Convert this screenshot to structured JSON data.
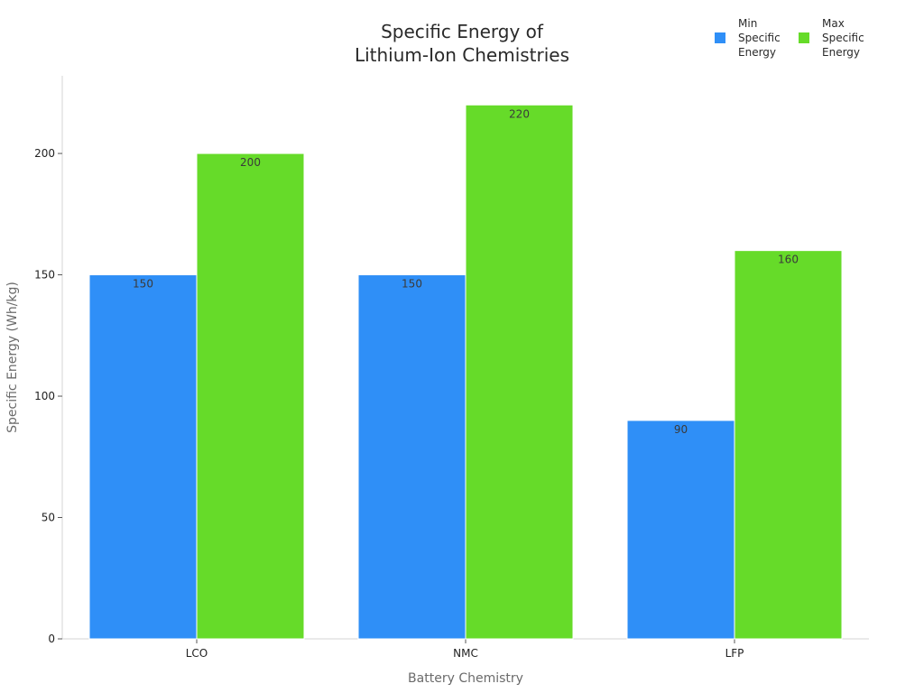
{
  "chart_data": {
    "type": "bar",
    "title_lines": [
      "Specific Energy of",
      "Lithium-Ion Chemistries"
    ],
    "xlabel": "Battery Chemistry",
    "ylabel": "Specific Energy (Wh/kg)",
    "categories": [
      "LCO",
      "NMC",
      "LFP"
    ],
    "series": [
      {
        "name": "Min Specific Energy",
        "legend_lines": [
          "Min",
          "Specific",
          "Energy"
        ],
        "color": "#2f8ff7",
        "values": [
          150,
          150,
          90
        ]
      },
      {
        "name": "Max Specific Energy",
        "legend_lines": [
          "Max",
          "Specific",
          "Energy"
        ],
        "color": "#66db29",
        "values": [
          200,
          220,
          160
        ]
      }
    ],
    "ylim": [
      0,
      232
    ],
    "yticks": [
      0,
      50,
      100,
      150,
      200
    ],
    "grid": false,
    "legend_position": "top-right",
    "data_labels": true
  }
}
